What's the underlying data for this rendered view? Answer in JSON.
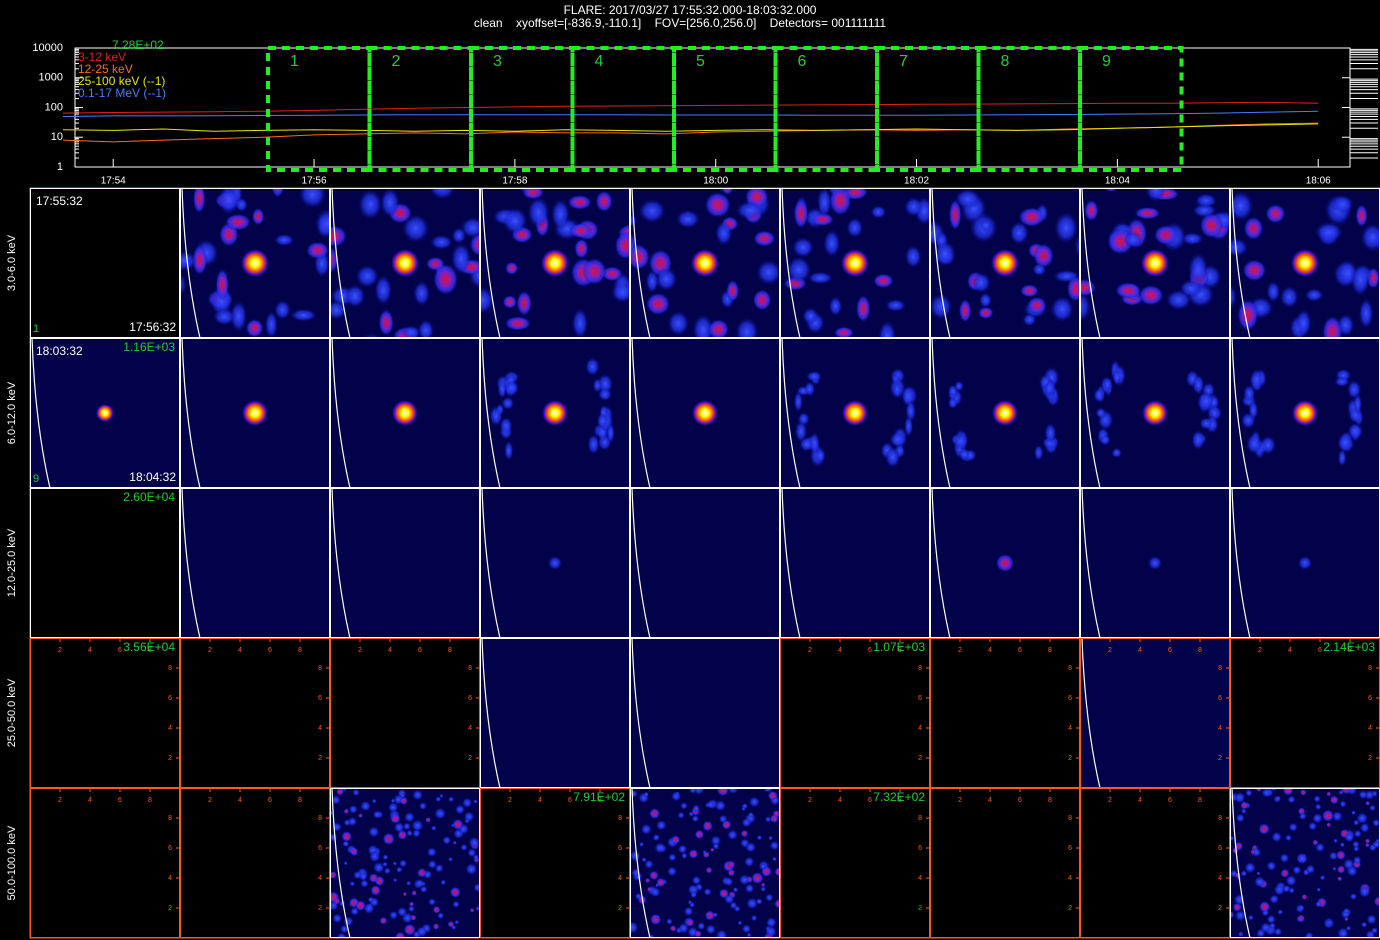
{
  "header": {
    "title": "FLARE: 2017/03/27 17:55:32.000-18:03:32.000",
    "subtitle": "clean    xyoffset=[-836.9,-110.1]    FOV=[256.0,256.0]    Detectors= 001111111"
  },
  "chart_data": {
    "type": "line",
    "log_y": true,
    "annotation": "7.28E+02",
    "categories": [
      null,
      "17:54",
      null,
      null,
      null,
      "17:56",
      null,
      null,
      null,
      "17:58",
      null,
      null,
      null,
      "18:00",
      null,
      null,
      null,
      "18:02",
      null,
      null,
      null,
      "18:04",
      null,
      null,
      null,
      "18:06"
    ],
    "ylim": [
      1,
      10000
    ],
    "yticks": [
      1,
      10,
      100,
      1000,
      10000
    ],
    "series": [
      {
        "name": "3-12 keV",
        "color": "#e02020",
        "values": [
          65,
          68,
          70,
          72,
          75,
          80,
          88,
          95,
          100,
          105,
          110,
          112,
          115,
          118,
          120,
          122,
          125,
          128,
          130,
          132,
          135,
          138,
          140,
          145,
          150,
          140
        ]
      },
      {
        "name": "12-25 keV",
        "color": "#ff6a1a",
        "values": [
          8,
          7,
          8,
          9,
          10,
          12,
          13,
          14,
          13,
          15,
          14,
          14,
          13,
          15,
          16,
          17,
          18,
          17,
          18,
          17,
          19,
          20,
          22,
          25,
          28,
          30
        ]
      },
      {
        "name": "25-100 keV (--1)",
        "color": "#e6e600",
        "values": [
          18,
          17,
          19,
          16,
          17,
          18,
          17,
          16,
          17,
          16,
          18,
          17,
          16,
          17,
          18,
          17,
          18,
          19,
          18,
          17,
          18,
          20,
          22,
          24,
          26,
          28
        ]
      },
      {
        "name": "0.1-17 MeV (--1)",
        "color": "#4a7cff",
        "values": [
          50,
          52,
          52,
          53,
          54,
          55,
          56,
          57,
          57,
          57,
          57,
          57,
          56,
          56,
          56,
          55,
          55,
          55,
          56,
          57,
          58,
          60,
          62,
          65,
          70,
          75
        ]
      }
    ]
  },
  "intervals": [
    "1",
    "2",
    "3",
    "4",
    "5",
    "6",
    "7",
    "8",
    "9"
  ],
  "empty_panel_axis": {
    "lim": [
      0,
      10
    ],
    "ticks": [
      2,
      4,
      6,
      8
    ]
  },
  "panels": {
    "rows": [
      {
        "label": "3.0-6.0 keV",
        "cells": [
          {
            "start_time": "17:55:32",
            "end_time": "17:56:32",
            "interval": "1"
          },
          {},
          {},
          {},
          {},
          {},
          {},
          {},
          {}
        ]
      },
      {
        "label": "6.0-12.0 keV",
        "cells": [
          {
            "start_time": "18:03:32",
            "end_time": "18:04:32",
            "interval": "9",
            "max": "1.16E+03"
          },
          {},
          {},
          {},
          {},
          {},
          {},
          {},
          {}
        ]
      },
      {
        "label": "12.0-25.0 keV",
        "cells": [
          {
            "max": "2.60E+04"
          },
          {},
          {},
          {},
          {},
          {},
          {},
          {},
          {}
        ]
      },
      {
        "label": "25.0-50.0 keV",
        "cells": [
          {
            "max": "3.56E+04"
          },
          {},
          {},
          {},
          {},
          {
            "max": "1.07E+03"
          },
          {},
          {},
          {
            "max": "2.14E+03"
          }
        ]
      },
      {
        "label": "50.0-100.0 keV",
        "cells": [
          {},
          {},
          {},
          {
            "max": "7.91E+02"
          },
          {},
          {
            "max": "7.32E+02"
          },
          {},
          {},
          {}
        ]
      }
    ]
  }
}
